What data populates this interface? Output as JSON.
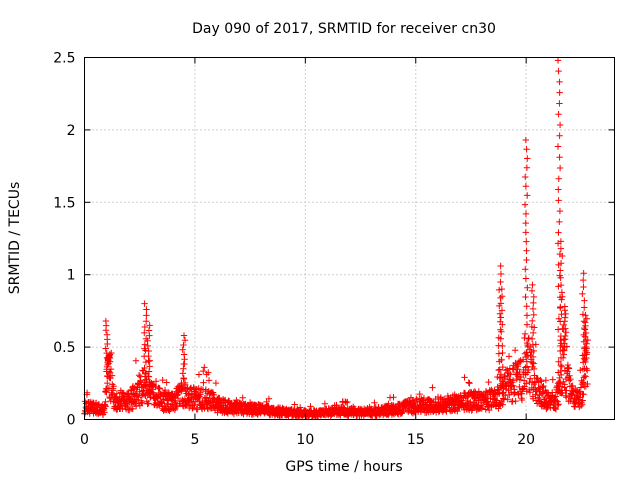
{
  "chart_data": {
    "type": "scatter",
    "title": "Day 090 of 2017, SRMTID for receiver cn30",
    "xlabel": "GPS time / hours",
    "ylabel": "SRMTID / TECUs",
    "xlim": [
      0,
      24
    ],
    "ylim": [
      0,
      2.5
    ],
    "grid": true,
    "marker": "+",
    "color": "#ff0000",
    "x_ticks": [
      0,
      5,
      10,
      15,
      20
    ],
    "x_tick_labels": [
      "0",
      "5",
      "10",
      "15",
      "20"
    ],
    "y_ticks": [
      0,
      0.5,
      1,
      1.5,
      2,
      2.5
    ],
    "y_tick_labels": [
      "0",
      "0.5",
      "1",
      "1.5",
      "2",
      "2.5"
    ],
    "profile": {
      "x": [
        0.0,
        0.5,
        0.9,
        1.0,
        1.1,
        1.3,
        1.6,
        2.0,
        2.5,
        2.7,
        2.8,
        3.0,
        3.3,
        3.6,
        4.0,
        4.4,
        4.5,
        4.8,
        5.2,
        5.6,
        6.0,
        6.5,
        7.0,
        8.0,
        9.0,
        9.5,
        10.0,
        10.5,
        11.0,
        11.5,
        12.0,
        13.0,
        14.0,
        15.0,
        15.5,
        16.0,
        16.5,
        17.0,
        17.5,
        18.0,
        18.5,
        18.8,
        19.0,
        19.3,
        19.6,
        19.9,
        20.1,
        20.4,
        20.7,
        21.0,
        21.3,
        21.5,
        21.7,
        21.9,
        22.1,
        22.4,
        22.6,
        22.8
      ],
      "y": [
        0.1,
        0.09,
        0.07,
        0.3,
        0.4,
        0.2,
        0.12,
        0.15,
        0.22,
        0.3,
        0.25,
        0.2,
        0.18,
        0.15,
        0.14,
        0.2,
        0.22,
        0.18,
        0.17,
        0.18,
        0.12,
        0.1,
        0.09,
        0.08,
        0.06,
        0.05,
        0.05,
        0.05,
        0.06,
        0.07,
        0.06,
        0.06,
        0.08,
        0.11,
        0.12,
        0.12,
        0.13,
        0.14,
        0.15,
        0.15,
        0.16,
        0.18,
        0.25,
        0.3,
        0.3,
        0.35,
        0.45,
        0.3,
        0.2,
        0.15,
        0.15,
        0.25,
        0.5,
        0.3,
        0.18,
        0.15,
        0.3,
        0.55
      ]
    },
    "spikes": [
      {
        "x": 1.0,
        "peak": 0.68
      },
      {
        "x": 1.1,
        "peak": 0.45
      },
      {
        "x": 2.75,
        "peak": 0.8
      },
      {
        "x": 2.9,
        "peak": 0.65
      },
      {
        "x": 4.5,
        "peak": 0.58
      },
      {
        "x": 18.8,
        "peak": 1.06
      },
      {
        "x": 18.9,
        "peak": 0.9
      },
      {
        "x": 20.0,
        "peak": 1.93
      },
      {
        "x": 20.3,
        "peak": 0.93
      },
      {
        "x": 21.5,
        "peak": 2.48
      },
      {
        "x": 21.6,
        "peak": 1.23
      },
      {
        "x": 21.75,
        "peak": 0.78
      },
      {
        "x": 22.6,
        "peak": 1.01
      },
      {
        "x": 22.7,
        "peak": 0.72
      }
    ]
  }
}
